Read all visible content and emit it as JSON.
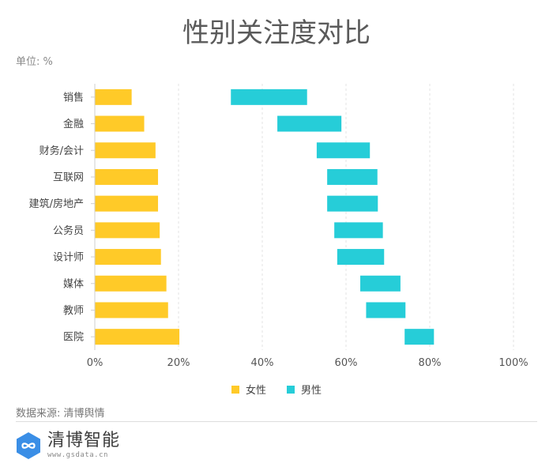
{
  "page": {
    "title": "性别关注度对比",
    "unit_label": "单位: %",
    "source": "数据来源: 清博舆情",
    "logo": {
      "name": "清博智能",
      "url": "www.gsdata.cn",
      "icon": "infinity-hexagon-icon",
      "color": "#3a8ee6"
    }
  },
  "chart_data": {
    "type": "bar",
    "orientation": "horizontal",
    "stacked": true,
    "categories": [
      "销售",
      "金融",
      "财务/会计",
      "互联网",
      "建筑/房地产",
      "公务员",
      "设计师",
      "媒体",
      "教师",
      "医院"
    ],
    "series": [
      {
        "name": "女性",
        "color": "#ffca28",
        "values": [
          8.8,
          11.8,
          14.5,
          15.1,
          15.1,
          15.5,
          15.8,
          17.1,
          17.5,
          20.2
        ]
      },
      {
        "name": "男性",
        "color": "#26cdd8",
        "values": [
          32.5,
          43.6,
          53.0,
          55.5,
          55.5,
          57.2,
          57.9,
          63.4,
          64.8,
          74.0
        ],
        "range_end": [
          50.7,
          58.9,
          65.7,
          67.5,
          67.6,
          68.8,
          69.1,
          73.0,
          74.2,
          81.0
        ]
      }
    ],
    "x_ticks": [
      "0%",
      "20%",
      "40%",
      "60%",
      "80%",
      "100%"
    ],
    "xlim": [
      0,
      100
    ],
    "grid": true,
    "legend_position": "bottom-center"
  }
}
